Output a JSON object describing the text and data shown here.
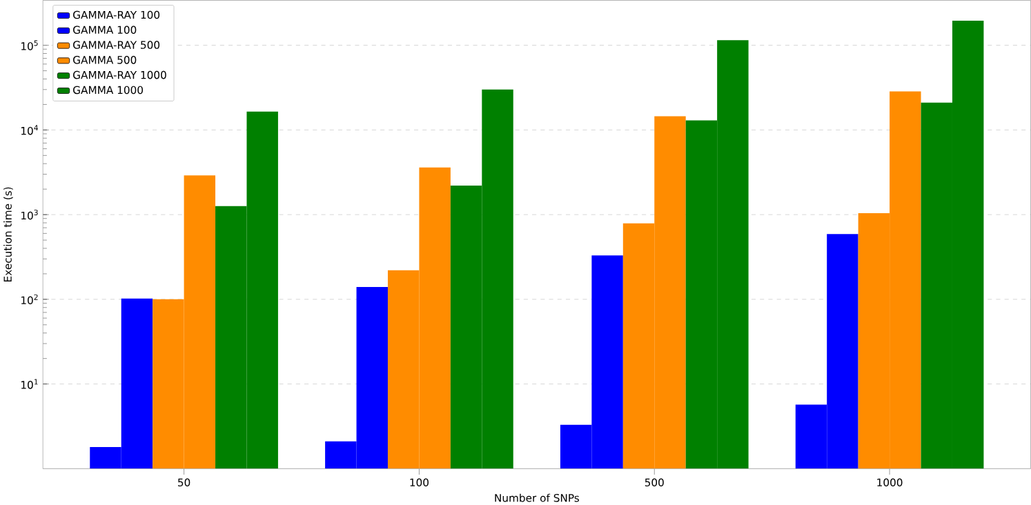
{
  "chart_data": {
    "type": "bar",
    "xlabel": "Number of SNPs",
    "ylabel": "Execution time (s)",
    "categories": [
      "50",
      "100",
      "500",
      "1000"
    ],
    "series": [
      {
        "name": "GAMMA-RAY 100",
        "color": "#0000ff",
        "values": [
          1.8,
          2.1,
          3.3,
          5.7
        ]
      },
      {
        "name": "GAMMA 100",
        "color": "#0000ff",
        "values": [
          102,
          140,
          330,
          590
        ]
      },
      {
        "name": "GAMMA-RAY 500",
        "color": "#ff8c00",
        "values": [
          100,
          220,
          790,
          1040
        ]
      },
      {
        "name": "GAMMA 500",
        "color": "#ff8c00",
        "values": [
          2900,
          3600,
          14500,
          28500
        ]
      },
      {
        "name": "GAMMA-RAY 1000",
        "color": "#008000",
        "values": [
          1260,
          2200,
          13000,
          21000
        ]
      },
      {
        "name": "GAMMA 1000",
        "color": "#008000",
        "values": [
          16500,
          30000,
          115000,
          195000
        ]
      }
    ],
    "log": "y",
    "ylim": [
      1,
      340000
    ],
    "yticks": [
      {
        "value": 10,
        "label": "10$^{1}$"
      },
      {
        "value": 100,
        "label": "10$^{2}$"
      },
      {
        "value": 1000,
        "label": "10$^{3}$"
      },
      {
        "value": 10000,
        "label": "10$^{4}$"
      },
      {
        "value": 100000,
        "label": "10$^{5}$"
      }
    ],
    "grid": "y",
    "legend": "top left"
  }
}
